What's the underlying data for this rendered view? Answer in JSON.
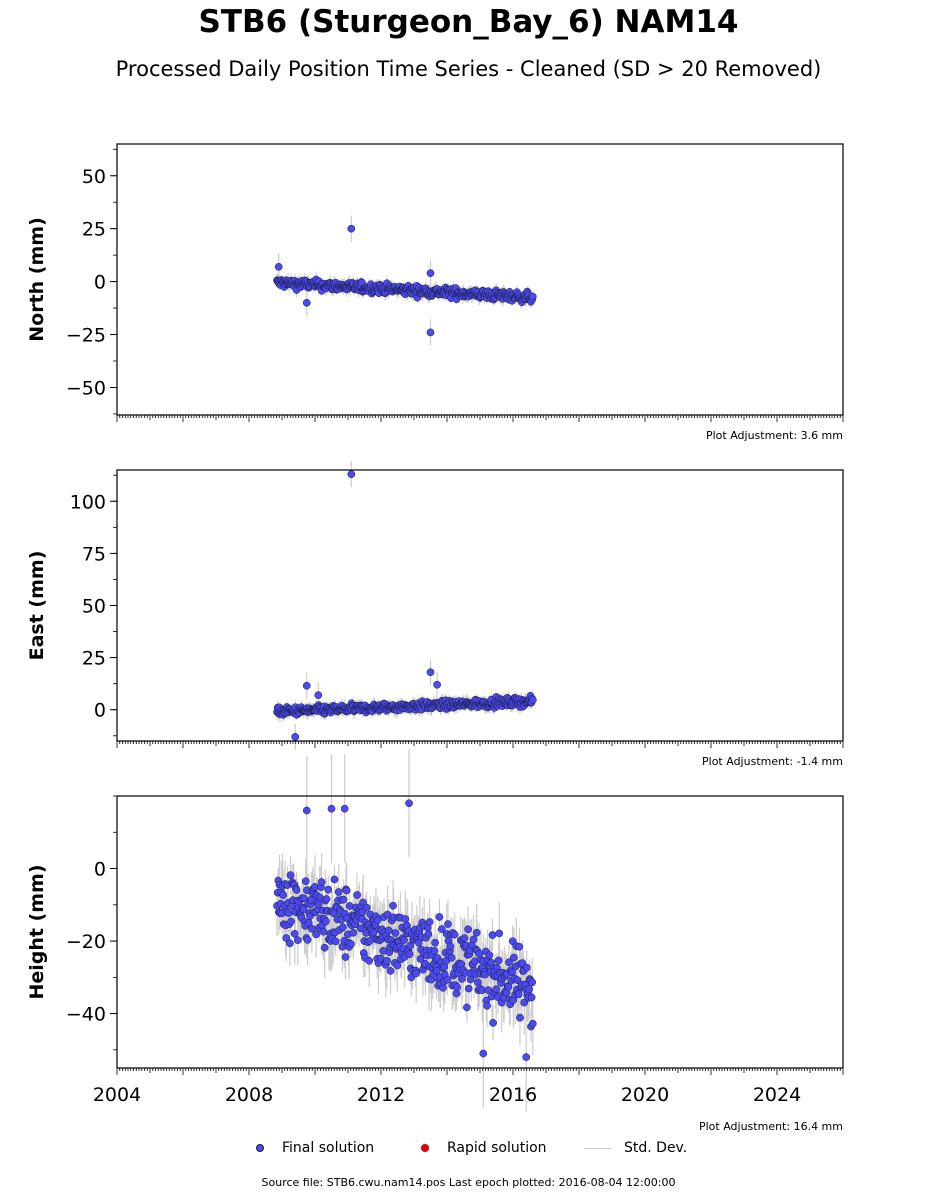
{
  "title": "STB6 (Sturgeon_Bay_6) NAM14",
  "subtitle": "Processed Daily Position Time Series - Cleaned (SD > 20 Removed)",
  "legend": {
    "final": "Final solution",
    "rapid": "Rapid solution",
    "std": "Std. Dev."
  },
  "footer": "Source file: STB6.cwu.nam14.pos  Last epoch plotted: 2016-08-04 12:00:00",
  "colors": {
    "final": "#4a4af0",
    "rapid": "#e00000",
    "std": "#cccccc",
    "edge": "#1a1a3a"
  },
  "chart_data": [
    {
      "type": "scatter",
      "component": "north",
      "ylabel": "North (mm)",
      "adjustment": "Plot Adjustment: 3.6 mm",
      "xlim": [
        2004,
        2026
      ],
      "ylim": [
        -63,
        65
      ],
      "yticks": [
        -50,
        -25,
        0,
        25,
        50
      ],
      "xticks": [],
      "start": 2008.85,
      "end": 2016.6,
      "trend": [
        -0.5,
        -7.5
      ],
      "noise": 1.6,
      "sd": 2.5,
      "outliers": [
        [
          2008.9,
          7
        ],
        [
          2009.75,
          -10
        ],
        [
          2011.1,
          25
        ],
        [
          2013.5,
          4
        ],
        [
          2013.5,
          -24
        ]
      ]
    },
    {
      "type": "scatter",
      "component": "east",
      "ylabel": "East (mm)",
      "adjustment": "Plot Adjustment: -1.4 mm",
      "xlim": [
        2004,
        2026
      ],
      "ylim": [
        -15,
        115
      ],
      "yticks": [
        0,
        25,
        50,
        75,
        100
      ],
      "xticks": [],
      "start": 2008.85,
      "end": 2016.6,
      "trend": [
        -1,
        4
      ],
      "noise": 1.4,
      "sd": 2.5,
      "outliers": [
        [
          2009.75,
          11.5
        ],
        [
          2009.4,
          -13
        ],
        [
          2011.1,
          113
        ],
        [
          2013.5,
          18
        ],
        [
          2013.7,
          12
        ],
        [
          2010.1,
          7
        ]
      ]
    },
    {
      "type": "scatter",
      "component": "height",
      "ylabel": "Height (mm)",
      "adjustment": "Plot Adjustment: 16.4 mm",
      "xlim": [
        2004,
        2026
      ],
      "ylim": [
        -55,
        20
      ],
      "yticks": [
        -40,
        -20,
        0
      ],
      "xticks": [
        "2004",
        "2008",
        "2012",
        "2016",
        "2020",
        "2024"
      ],
      "start": 2008.85,
      "end": 2016.6,
      "trend": [
        -8,
        -33
      ],
      "noise": 7,
      "sd": 6,
      "outliers": [
        [
          2009.75,
          16
        ],
        [
          2010.9,
          16.5
        ],
        [
          2010.5,
          16.5
        ],
        [
          2012.85,
          18
        ],
        [
          2015.1,
          -51
        ],
        [
          2016.4,
          -52
        ]
      ]
    }
  ]
}
